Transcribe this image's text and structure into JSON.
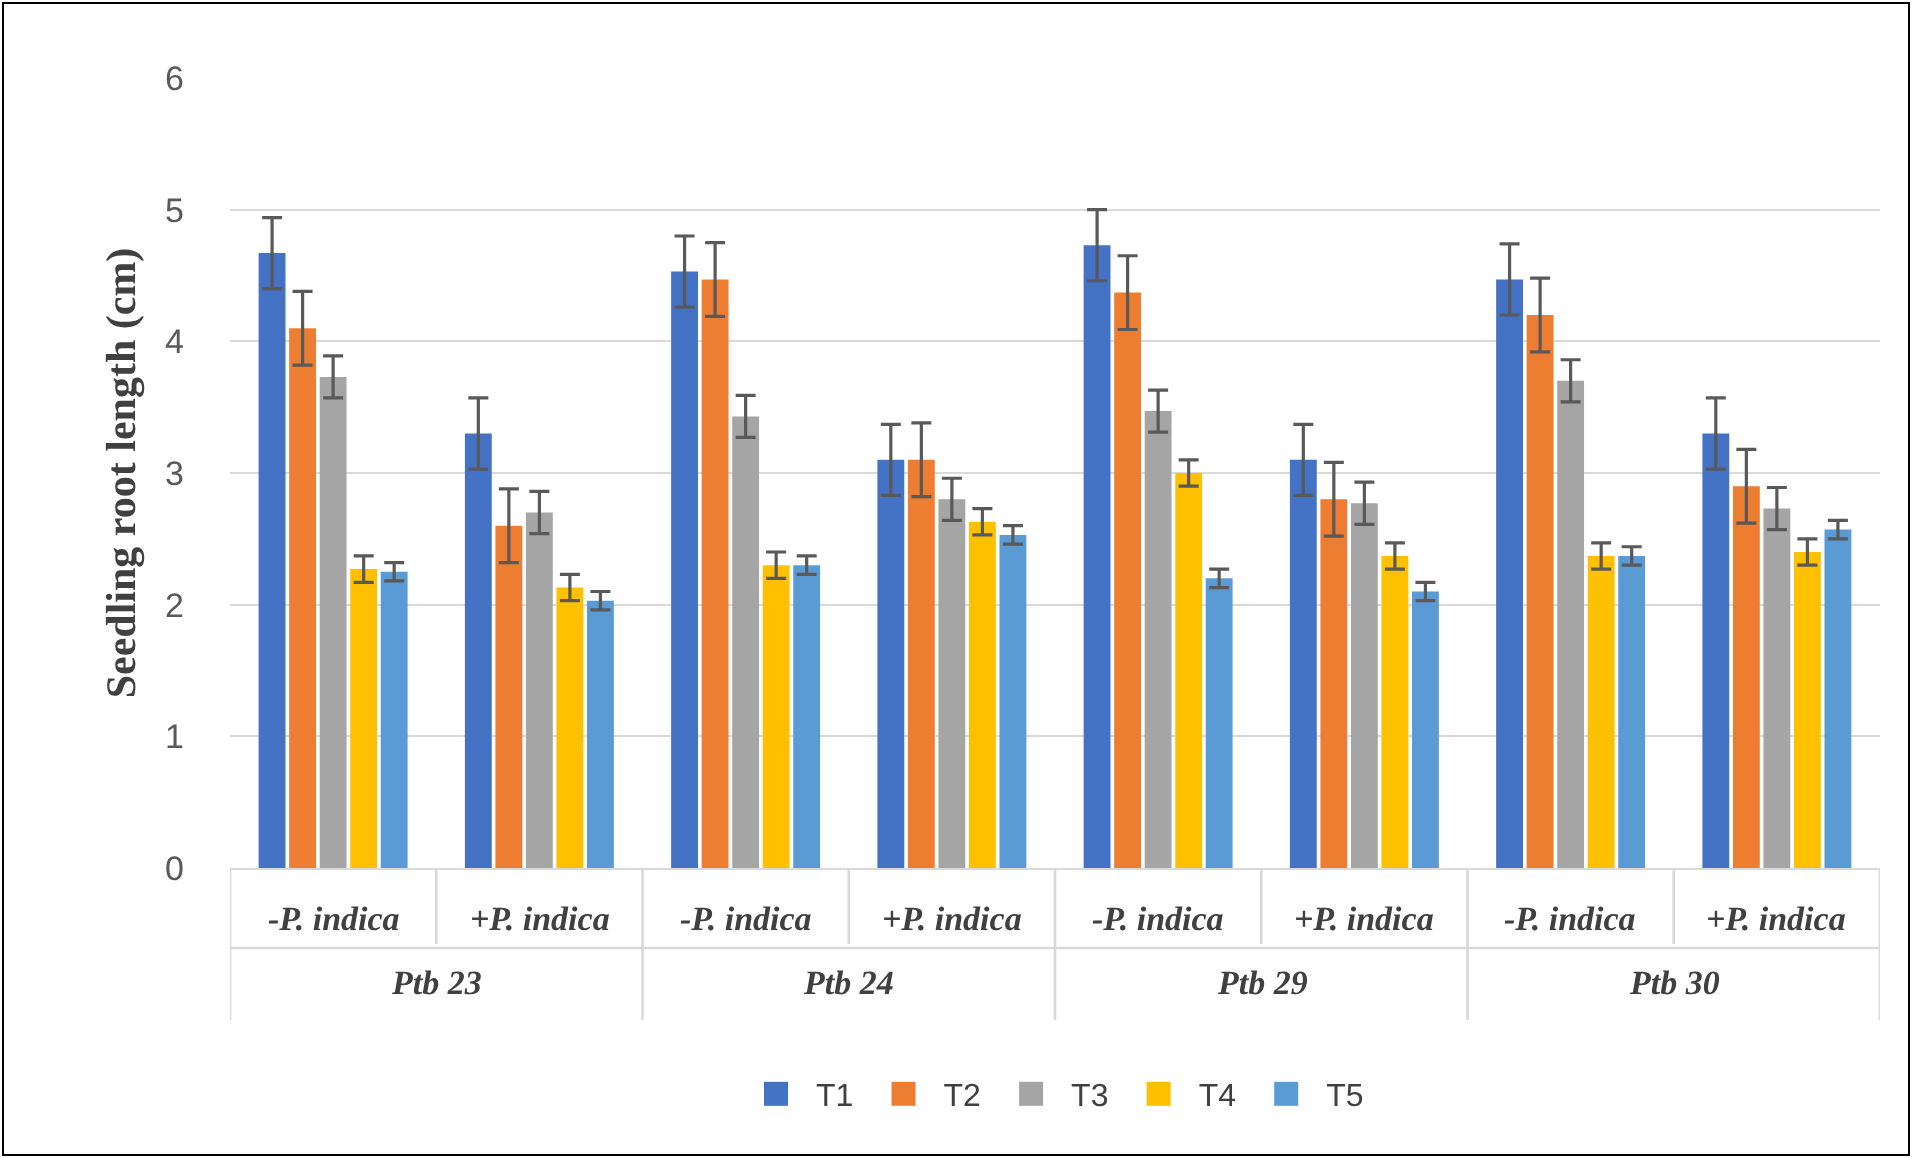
{
  "chart_data": {
    "type": "bar",
    "ylabel": "Seedling root length (cm)",
    "categories": [
      "-P. indica",
      "+P. indica",
      "-P. indica",
      "+P. indica",
      "-P. indica",
      "+P. indica",
      "-P. indica",
      "+P. indica"
    ],
    "annotations": [
      "Ptb 23",
      "Ptb 24",
      "Ptb 29",
      "Ptb 30"
    ],
    "series": [
      {
        "name": "T1",
        "color": "#4472c4",
        "values": [
          4.67,
          3.3,
          4.53,
          3.1,
          4.73,
          3.1,
          4.47,
          3.3
        ],
        "errors": [
          0.27,
          0.27,
          0.27,
          0.27,
          0.27,
          0.27,
          0.27,
          0.27
        ]
      },
      {
        "name": "T2",
        "color": "#ed7d31",
        "values": [
          4.1,
          2.6,
          4.47,
          3.1,
          4.37,
          2.8,
          4.2,
          2.9
        ],
        "errors": [
          0.28,
          0.28,
          0.28,
          0.28,
          0.28,
          0.28,
          0.28,
          0.28
        ]
      },
      {
        "name": "T3",
        "color": "#a5a5a5",
        "values": [
          3.73,
          2.7,
          3.43,
          2.8,
          3.47,
          2.77,
          3.7,
          2.73
        ],
        "errors": [
          0.16,
          0.16,
          0.16,
          0.16,
          0.16,
          0.16,
          0.16,
          0.16
        ]
      },
      {
        "name": "T4",
        "color": "#ffc000",
        "values": [
          2.27,
          2.13,
          2.3,
          2.63,
          3.0,
          2.37,
          2.37,
          2.4
        ],
        "errors": [
          0.1,
          0.1,
          0.1,
          0.1,
          0.1,
          0.1,
          0.1,
          0.1
        ]
      },
      {
        "name": "T5",
        "color": "#5b9bd5",
        "values": [
          2.25,
          2.03,
          2.3,
          2.53,
          2.2,
          2.1,
          2.37,
          2.57
        ],
        "errors": [
          0.07,
          0.07,
          0.07,
          0.07,
          0.07,
          0.07,
          0.07,
          0.07
        ]
      }
    ],
    "ylim": [
      0,
      6
    ],
    "yticks": [
      0,
      1,
      2,
      3,
      4,
      5,
      6
    ],
    "grid": "y",
    "legend": "bottom"
  }
}
